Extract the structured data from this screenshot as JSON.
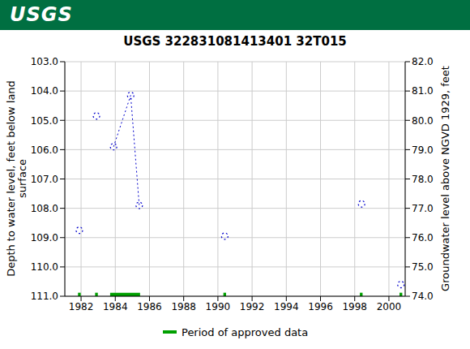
{
  "header": {
    "logo": "USGS"
  },
  "chart_data": {
    "type": "scatter",
    "title": "USGS 322831081413401 32T015",
    "ylabel": [
      "Depth to water level, feet below land",
      "surface"
    ],
    "y2label": "Groundwater level above NGVD 1929, feet",
    "x": [
      1981.9,
      1982.4,
      1982.9,
      1983.4,
      1983.9,
      1984.9,
      1985.4,
      1987.9,
      1990.4,
      1994.4,
      1998.4,
      1999.5,
      2000.7
    ],
    "xlim": [
      1981.05,
      2000.95
    ],
    "xticks": [
      1982,
      1984,
      1986,
      1988,
      1990,
      1992,
      1994,
      1996,
      1998,
      2000
    ],
    "ylim": [
      111,
      103
    ],
    "yticks": [
      {
        "value": 103,
        "label": "103.0"
      },
      {
        "value": 104,
        "label": "104.0"
      },
      {
        "value": 105,
        "label": "105.0"
      },
      {
        "value": 106,
        "label": "106.0"
      },
      {
        "value": 107,
        "label": "107.0"
      },
      {
        "value": 108,
        "label": "108.0"
      },
      {
        "value": 109,
        "label": "109.0"
      },
      {
        "value": 110,
        "label": "110.0"
      },
      {
        "value": 111,
        "label": "111.0"
      }
    ],
    "y2lim": [
      74,
      82
    ],
    "y2ticks": [
      {
        "value": 74,
        "label": "74.0"
      },
      {
        "value": 75,
        "label": "75.0"
      },
      {
        "value": 76,
        "label": "76.0"
      },
      {
        "value": 77,
        "label": "77.0"
      },
      {
        "value": 78,
        "label": "78.0"
      },
      {
        "value": 79,
        "label": "79.0"
      },
      {
        "value": 80,
        "label": "80.0"
      },
      {
        "value": 81,
        "label": "81.0"
      },
      {
        "value": 82,
        "label": "82.0"
      }
    ],
    "grid": true,
    "series": [
      {
        "name": "Depth to water level",
        "color": "#0000cc",
        "marker": "circle",
        "line_style": "dotted",
        "values": [
          108.75,
          null,
          104.85,
          null,
          105.9,
          104.15,
          107.9,
          null,
          108.95,
          null,
          107.85,
          null,
          110.6
        ]
      },
      {
        "name": "Period of approved data",
        "color": "#00a000",
        "type": "range",
        "values": [
          [
            1981.82,
            1981.98
          ],
          [
            1982.82,
            1982.98
          ],
          [
            1983.7,
            1985.45
          ],
          [
            1990.32,
            1990.48
          ],
          [
            1998.3,
            1998.46
          ],
          [
            2000.62,
            2000.78
          ]
        ]
      }
    ]
  }
}
